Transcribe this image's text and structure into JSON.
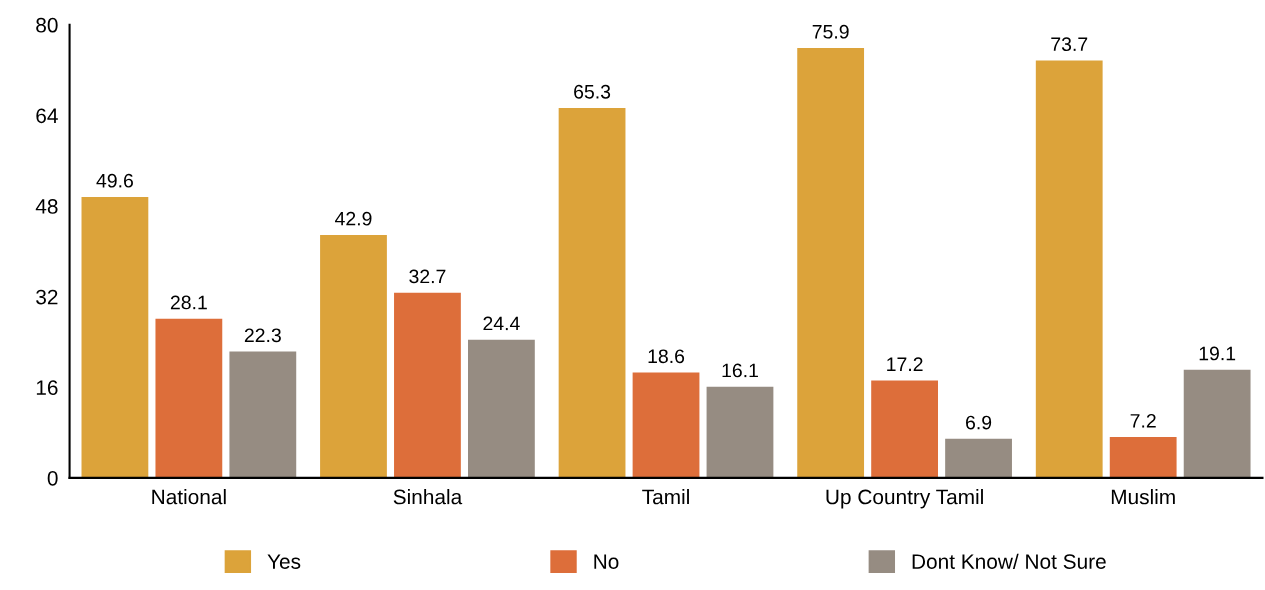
{
  "chart_data": {
    "type": "bar",
    "categories": [
      "National",
      "Sinhala",
      "Tamil",
      "Up Country Tamil",
      "Muslim"
    ],
    "series": [
      {
        "name": "Yes",
        "color": "#dca33a",
        "values": [
          49.6,
          42.9,
          65.3,
          75.9,
          73.7
        ]
      },
      {
        "name": "No",
        "color": "#dd6e3a",
        "values": [
          28.1,
          32.7,
          18.6,
          17.2,
          7.2
        ]
      },
      {
        "name": "Dont Know/ Not Sure",
        "color": "#968c82",
        "values": [
          22.3,
          24.4,
          16.1,
          6.9,
          19.1
        ]
      }
    ],
    "ylim": [
      0,
      80
    ],
    "yticks": [
      0,
      16,
      32,
      48,
      64,
      80
    ],
    "grid": false,
    "legend": "bottom",
    "data_labels": true
  }
}
